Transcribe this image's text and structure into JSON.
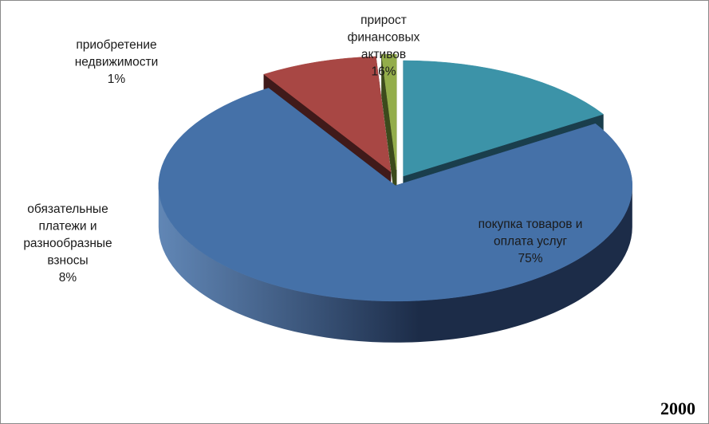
{
  "colors": {
    "border": "#8a8a8a",
    "background": "#ffffff"
  },
  "chart_data": {
    "type": "pie",
    "three_d": true,
    "exploded": true,
    "legend": "none",
    "annotation": "2000",
    "slices": [
      {
        "label_lines": [
          "прирост",
          "финансовых",
          "активов"
        ],
        "value": 16,
        "percent_label": "16%",
        "color": "#3c93a8",
        "dark": "#1a3e4c",
        "explode": 16
      },
      {
        "label_lines": [
          "покупка товаров и",
          "оплата услуг"
        ],
        "value": 75,
        "percent_label": "75%",
        "color": "#4571a8",
        "dark": "#1c2c48",
        "explode": 10
      },
      {
        "label_lines": [
          "обязательные",
          "платежи и",
          "разнообразные",
          "взносы"
        ],
        "value": 8,
        "percent_label": "8%",
        "color": "#a84744",
        "dark": "#401a1a",
        "explode": 26
      },
      {
        "label_lines": [
          "приобретение",
          "недвижимости"
        ],
        "value": 1,
        "percent_label": "1%",
        "color": "#93ad4b",
        "dark": "#3c4a1c",
        "explode": 30
      }
    ]
  }
}
